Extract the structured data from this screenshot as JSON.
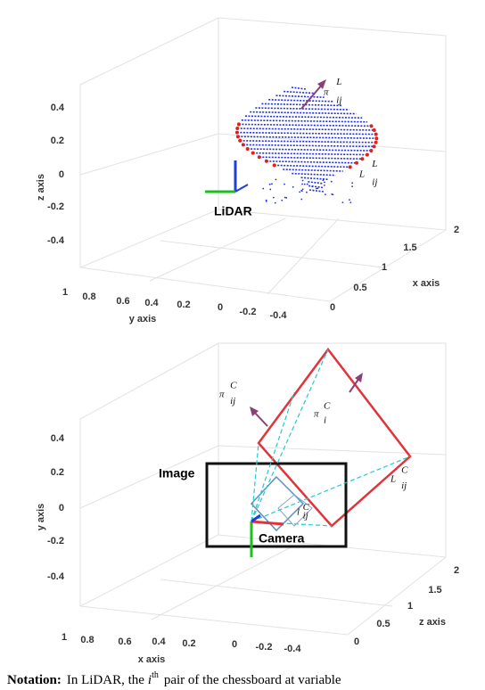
{
  "top_plot": {
    "z_ticks": [
      "0.4",
      "0.2",
      "0",
      "-0.2",
      "-0.4"
    ],
    "z_label": "z axis",
    "y_ticks": [
      "1",
      "0.8",
      "0.6",
      "0.4",
      "0.2",
      "0",
      "-0.2",
      "-0.4"
    ],
    "y_label": "y axis",
    "x_ticks": [
      "0",
      "0.5",
      "1",
      "1.5",
      "2"
    ],
    "x_label": "x axis",
    "sensor_label": "LiDAR",
    "plane_symbol": {
      "base": "π",
      "sub": "ij",
      "sup": "L"
    },
    "line_symbol": {
      "base": "L",
      "sub": "ij",
      "sup": "L"
    }
  },
  "bottom_plot": {
    "y_ticks": [
      "0.4",
      "0.2",
      "0",
      "-0.2",
      "-0.4"
    ],
    "y_label": "y axis",
    "x_ticks": [
      "1",
      "0.8",
      "0.6",
      "0.4",
      "0.2",
      "0",
      "-0.2",
      "-0.4"
    ],
    "x_label": "x axis",
    "z_ticks": [
      "0",
      "0.5",
      "1",
      "1.5",
      "2"
    ],
    "z_label": "z axis",
    "image_label": "Image",
    "sensor_label": "Camera",
    "plane_symbol": {
      "base": "π",
      "sub": "ij",
      "sup": "C"
    },
    "plane_i_symbol": {
      "base": "π",
      "sub": "i",
      "sup": "C"
    },
    "line_symbol": {
      "base": "L",
      "sub": "ij",
      "sup": "C"
    },
    "image_line_symbol": {
      "base": "l",
      "sub": "ij",
      "sup": "C"
    }
  },
  "caption": {
    "lead": "Notation:",
    "text": "In LiDAR, the",
    "index": "i",
    "index_sup": "th",
    "rest": "pair of the chessboard at variable"
  }
}
